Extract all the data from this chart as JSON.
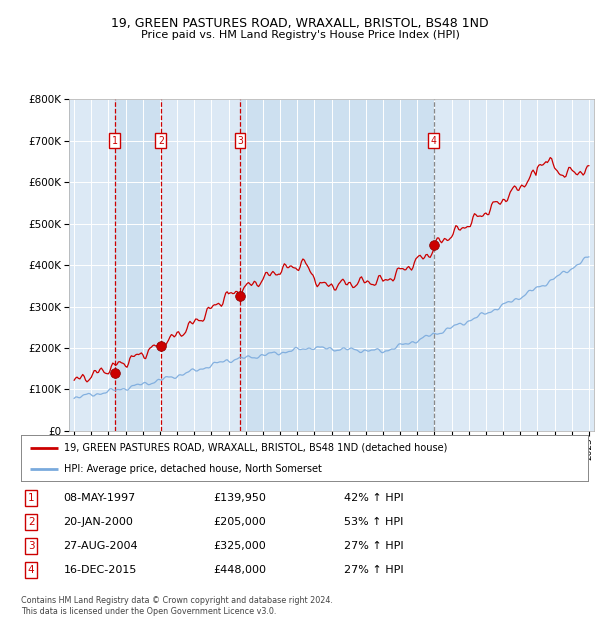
{
  "title1": "19, GREEN PASTURES ROAD, WRAXALL, BRISTOL, BS48 1ND",
  "title2": "Price paid vs. HM Land Registry's House Price Index (HPI)",
  "bg_color": "#dce9f5",
  "red_color": "#cc0000",
  "blue_color": "#7aaadd",
  "sale_dates": [
    1997.37,
    2000.05,
    2004.66,
    2015.96
  ],
  "sale_prices": [
    139950,
    205000,
    325000,
    448000
  ],
  "sale_labels": [
    "1",
    "2",
    "3",
    "4"
  ],
  "sale_info": [
    {
      "num": "1",
      "date": "08-MAY-1997",
      "price": "£139,950",
      "hpi": "42% ↑ HPI"
    },
    {
      "num": "2",
      "date": "20-JAN-2000",
      "price": "£205,000",
      "hpi": "53% ↑ HPI"
    },
    {
      "num": "3",
      "date": "27-AUG-2004",
      "price": "£325,000",
      "hpi": "27% ↑ HPI"
    },
    {
      "num": "4",
      "date": "16-DEC-2015",
      "price": "£448,000",
      "hpi": "27% ↑ HPI"
    }
  ],
  "legend_line1": "19, GREEN PASTURES ROAD, WRAXALL, BRISTOL, BS48 1ND (detached house)",
  "legend_line2": "HPI: Average price, detached house, North Somerset",
  "footer": "Contains HM Land Registry data © Crown copyright and database right 2024.\nThis data is licensed under the Open Government Licence v3.0.",
  "ylim": [
    0,
    800000
  ],
  "xlim_start": 1994.7,
  "xlim_end": 2025.3
}
